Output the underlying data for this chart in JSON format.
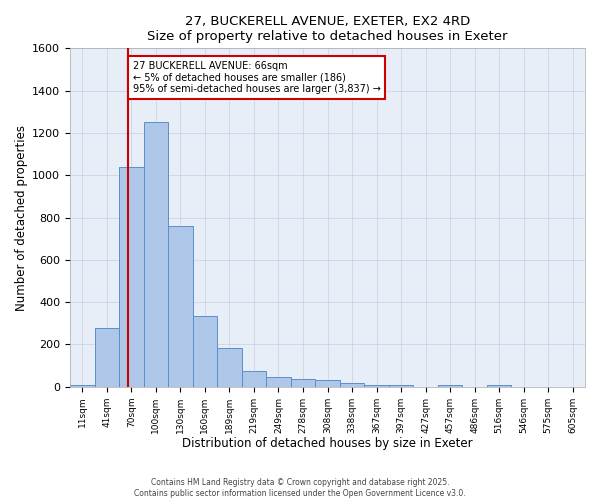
{
  "title_line1": "27, BUCKERELL AVENUE, EXETER, EX2 4RD",
  "title_line2": "Size of property relative to detached houses in Exeter",
  "xlabel": "Distribution of detached houses by size in Exeter",
  "ylabel": "Number of detached properties",
  "categories": [
    "11sqm",
    "41sqm",
    "70sqm",
    "100sqm",
    "130sqm",
    "160sqm",
    "189sqm",
    "219sqm",
    "249sqm",
    "278sqm",
    "308sqm",
    "338sqm",
    "367sqm",
    "397sqm",
    "427sqm",
    "457sqm",
    "486sqm",
    "516sqm",
    "546sqm",
    "575sqm",
    "605sqm"
  ],
  "values": [
    10,
    280,
    1040,
    1250,
    760,
    335,
    185,
    75,
    48,
    38,
    30,
    20,
    10,
    8,
    0,
    8,
    0,
    8,
    0,
    0,
    0
  ],
  "bar_color": "#aec6e8",
  "bar_edge_color": "#5b8fc9",
  "grid_color": "#c8d0e0",
  "bg_color": "#e8eef8",
  "red_line_x": 1.85,
  "annotation_text": "27 BUCKERELL AVENUE: 66sqm\n← 5% of detached houses are smaller (186)\n95% of semi-detached houses are larger (3,837) →",
  "annotation_box_color": "#ffffff",
  "annotation_border_color": "#cc0000",
  "ylim": [
    0,
    1600
  ],
  "yticks": [
    0,
    200,
    400,
    600,
    800,
    1000,
    1200,
    1400,
    1600
  ],
  "footer_line1": "Contains HM Land Registry data © Crown copyright and database right 2025.",
  "footer_line2": "Contains public sector information licensed under the Open Government Licence v3.0."
}
